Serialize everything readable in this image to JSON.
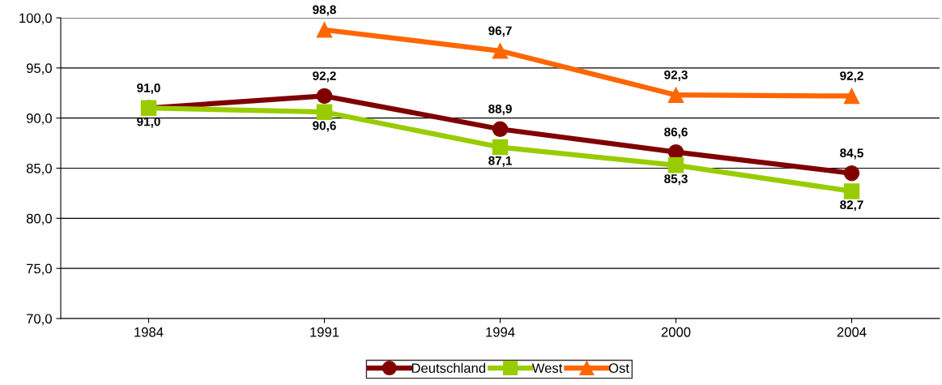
{
  "chart_data": {
    "type": "line",
    "categories": [
      "1984",
      "1991",
      "1994",
      "2000",
      "2004"
    ],
    "series": [
      {
        "name": "Deutschland",
        "color": "#800000",
        "marker": "circle",
        "values": [
          91.0,
          92.2,
          88.9,
          86.6,
          84.5
        ],
        "value_labels": [
          "91,0",
          "92,2",
          "88,9",
          "86,6",
          "84,5"
        ]
      },
      {
        "name": "West",
        "color": "#99cc00",
        "marker": "square",
        "values": [
          91.0,
          90.6,
          87.1,
          85.3,
          82.7
        ],
        "value_labels": [
          "91,0",
          "90,6",
          "87,1",
          "85,3",
          "82,7"
        ]
      },
      {
        "name": "Ost",
        "color": "#ff6600",
        "marker": "triangle",
        "values": [
          null,
          98.8,
          96.7,
          92.3,
          92.2
        ],
        "value_labels": [
          null,
          "98,8",
          "96,7",
          "92,3",
          "92,2"
        ]
      }
    ],
    "ylim": [
      70,
      100
    ],
    "yticks": [
      {
        "value": 70,
        "label": "70,0"
      },
      {
        "value": 75,
        "label": "75,0"
      },
      {
        "value": 80,
        "label": "80,0"
      },
      {
        "value": 85,
        "label": "85,0"
      },
      {
        "value": 90,
        "label": "90,0"
      },
      {
        "value": 95,
        "label": "95,0"
      },
      {
        "value": 100,
        "label": "100,0"
      }
    ],
    "grid": "y",
    "legend": "bottom",
    "line_style": "solid"
  }
}
